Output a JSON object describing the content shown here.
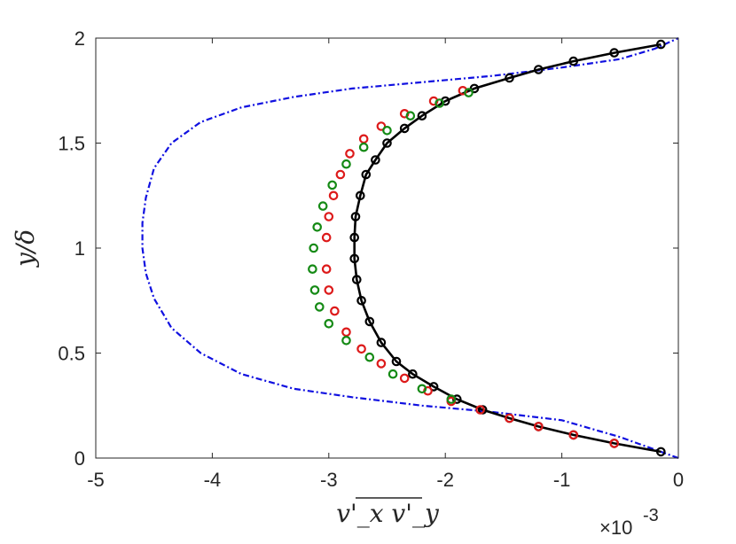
{
  "chart_data": {
    "type": "line",
    "title": "",
    "xlabel": "v'_x v'_y",
    "ylabel": "y/δ",
    "xlim": [
      -5,
      0
    ],
    "ylim": [
      0,
      2
    ],
    "x_scale_note": "×10",
    "x_scale_exponent": "-3",
    "xticks": [
      "-5",
      "-4",
      "-3",
      "-2",
      "-1",
      "0"
    ],
    "yticks": [
      "0",
      "0.5",
      "1",
      "1.5",
      "2"
    ],
    "grid": false,
    "legend": "none",
    "series": [
      {
        "style": "dash-dot line",
        "color": "#1010e0",
        "x": [
          0.0,
          -0.2,
          -0.5,
          -1.0,
          -1.6,
          -2.2,
          -2.8,
          -3.3,
          -3.75,
          -4.1,
          -4.35,
          -4.5,
          -4.57,
          -4.6,
          -4.6,
          -4.57,
          -4.5,
          -4.35,
          -4.1,
          -3.75,
          -3.3,
          -2.8,
          -2.2,
          -1.6,
          -1.0,
          -0.5,
          -0.2,
          0.0
        ],
        "y": [
          0.0,
          0.04,
          0.1,
          0.18,
          0.22,
          0.25,
          0.29,
          0.33,
          0.4,
          0.5,
          0.62,
          0.76,
          0.88,
          1.0,
          1.12,
          1.24,
          1.38,
          1.5,
          1.6,
          1.67,
          1.72,
          1.76,
          1.79,
          1.82,
          1.86,
          1.9,
          1.95,
          2.0
        ]
      },
      {
        "style": "line + circles",
        "color": "#000000",
        "x": [
          -0.15,
          -0.55,
          -0.9,
          -1.2,
          -1.45,
          -1.68,
          -1.9,
          -2.1,
          -2.28,
          -2.42,
          -2.55,
          -2.65,
          -2.72,
          -2.76,
          -2.78,
          -2.78,
          -2.77,
          -2.73,
          -2.68,
          -2.6,
          -2.5,
          -2.35,
          -2.2,
          -2.0,
          -1.75,
          -1.45,
          -1.2,
          -0.9,
          -0.55,
          -0.15
        ],
        "y": [
          0.03,
          0.07,
          0.11,
          0.15,
          0.19,
          0.23,
          0.28,
          0.34,
          0.4,
          0.46,
          0.55,
          0.65,
          0.75,
          0.85,
          0.95,
          1.05,
          1.15,
          1.25,
          1.35,
          1.42,
          1.5,
          1.57,
          1.63,
          1.7,
          1.76,
          1.81,
          1.85,
          1.89,
          1.93,
          1.97
        ]
      },
      {
        "style": "circles",
        "color": "#dd1a1a",
        "x": [
          -0.55,
          -0.9,
          -1.2,
          -1.45,
          -1.7,
          -1.95,
          -2.15,
          -2.35,
          -2.55,
          -2.72,
          -2.85,
          -2.95,
          -3.0,
          -3.02,
          -3.02,
          -3.0,
          -2.96,
          -2.9,
          -2.82,
          -2.7,
          -2.55,
          -2.35,
          -2.1,
          -1.85
        ],
        "y": [
          0.07,
          0.11,
          0.15,
          0.19,
          0.23,
          0.27,
          0.32,
          0.38,
          0.45,
          0.52,
          0.6,
          0.7,
          0.8,
          0.9,
          1.05,
          1.15,
          1.25,
          1.35,
          1.45,
          1.52,
          1.58,
          1.64,
          1.7,
          1.75
        ]
      },
      {
        "style": "circles",
        "color": "#158a15",
        "x": [
          -1.95,
          -2.2,
          -2.45,
          -2.65,
          -2.85,
          -3.0,
          -3.08,
          -3.12,
          -3.14,
          -3.13,
          -3.1,
          -3.05,
          -2.97,
          -2.85,
          -2.7,
          -2.5,
          -2.3,
          -2.05,
          -1.8
        ],
        "y": [
          0.28,
          0.33,
          0.4,
          0.48,
          0.56,
          0.64,
          0.72,
          0.8,
          0.9,
          1.0,
          1.1,
          1.2,
          1.3,
          1.4,
          1.48,
          1.56,
          1.63,
          1.69,
          1.74
        ]
      }
    ]
  }
}
